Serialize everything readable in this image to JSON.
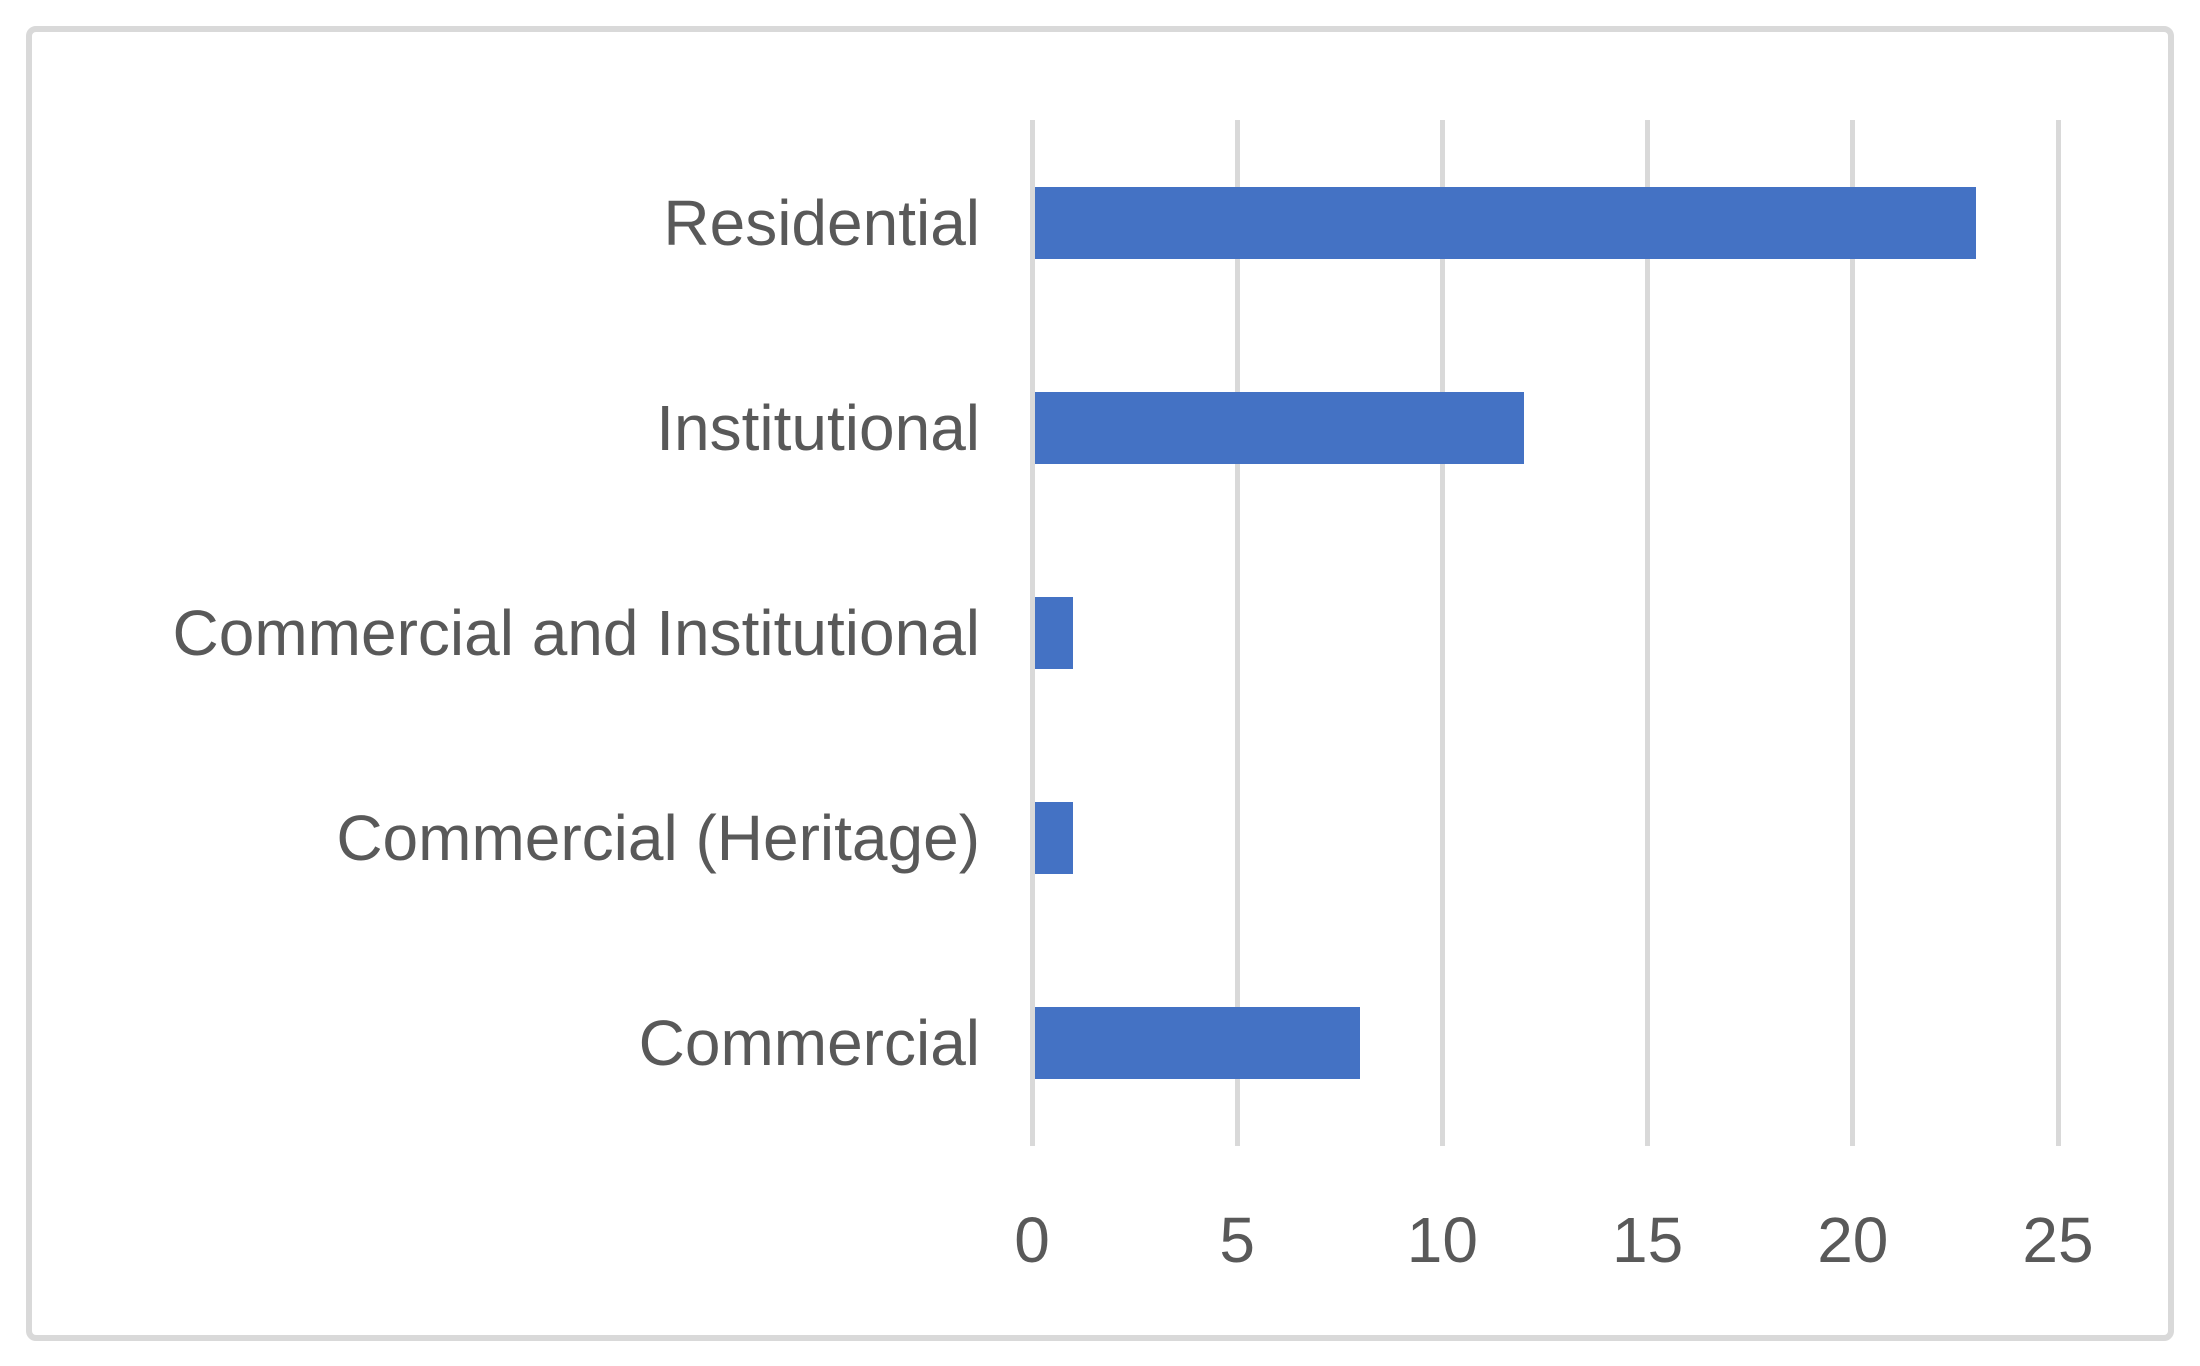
{
  "chart_data": {
    "type": "bar",
    "orientation": "horizontal",
    "title": "",
    "xlabel": "",
    "ylabel": "",
    "categories": [
      "Residential",
      "Institutional",
      "Commercial and Institutional",
      "Commercial (Heritage)",
      "Commercial"
    ],
    "values": [
      23,
      12,
      1,
      1,
      8
    ],
    "xlim": [
      0,
      25
    ],
    "xticks": [
      0,
      5,
      10,
      15,
      20,
      25
    ],
    "grid": true,
    "legend": false,
    "colors": {
      "bar": "#4472C4",
      "label": "#595959",
      "gridline": "#D9D9D9",
      "frame_border": "#D9D9D9",
      "background": "#FFFFFF"
    }
  }
}
